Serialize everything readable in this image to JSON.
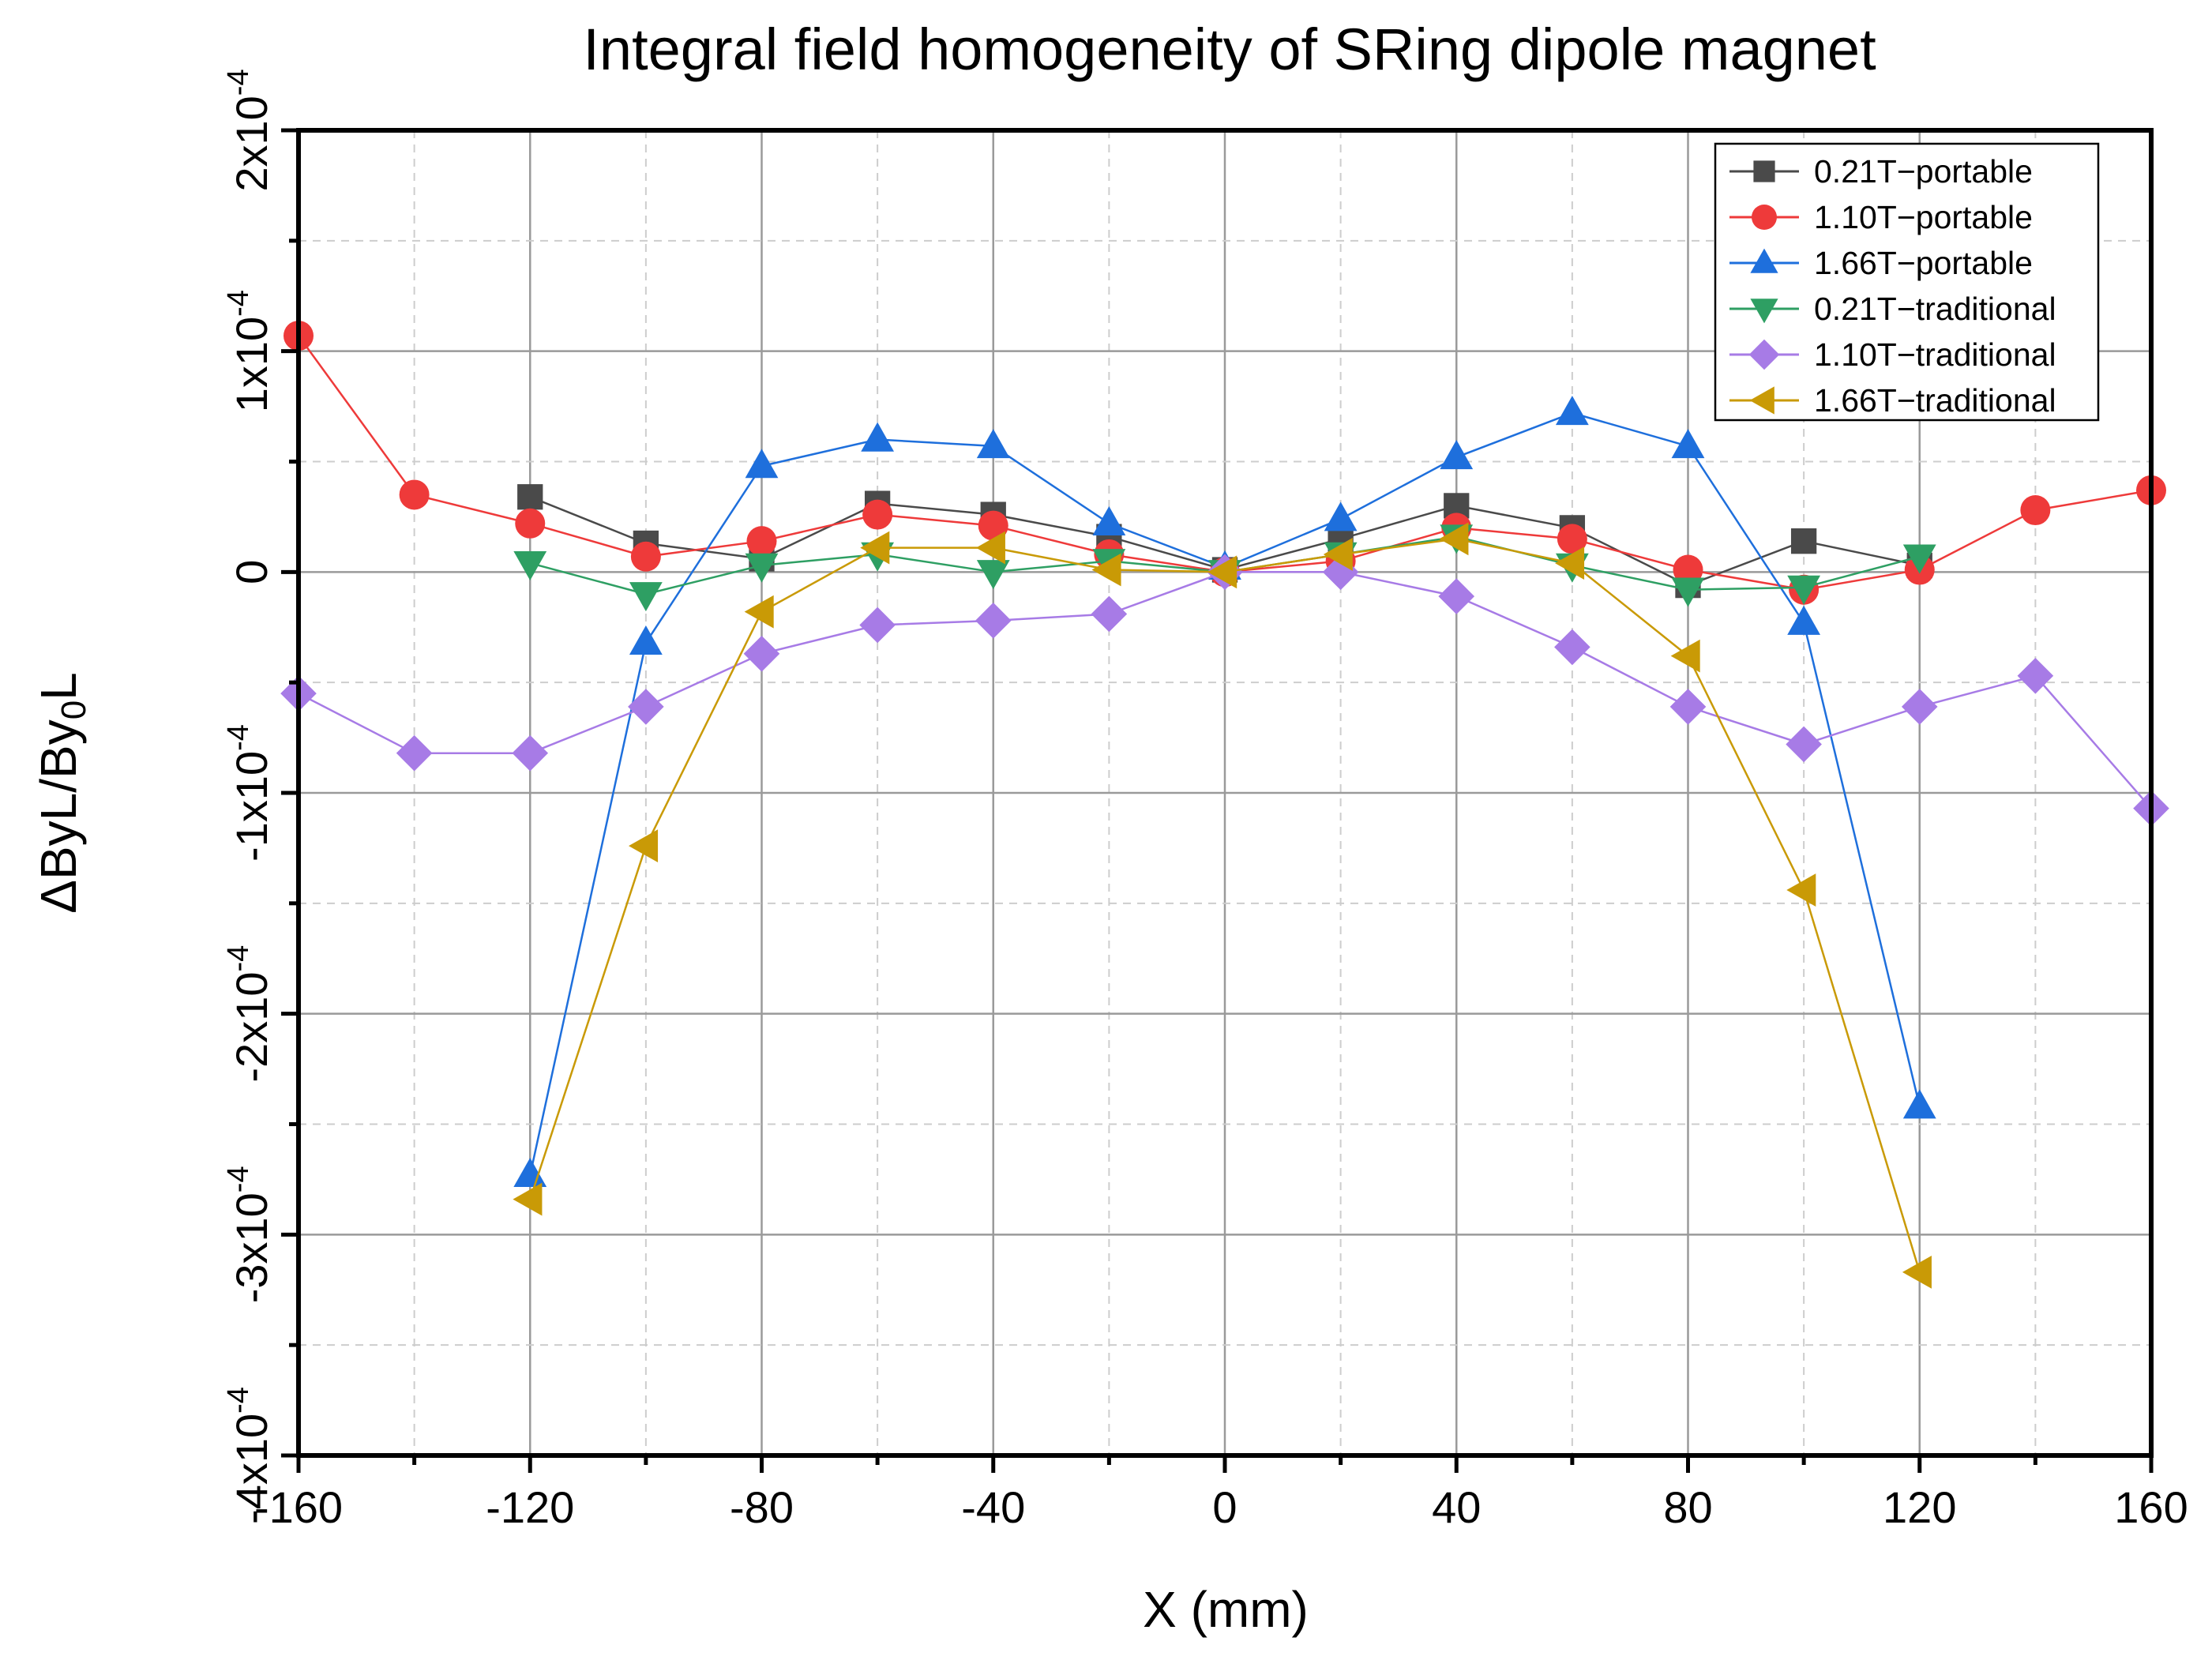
{
  "chart_data": {
    "type": "line",
    "title": "Integral field homogeneity of SRing dipole magnet",
    "xlabel": "X (mm)",
    "ylabel": "ΔByL/By0L",
    "ylabel_parts": {
      "a": "ΔByL/By",
      "sub": "0",
      "b": "L"
    },
    "xlim": [
      -160,
      160
    ],
    "ylim": [
      -4,
      2
    ],
    "y_unit_exponent": -4,
    "grid": true,
    "legend_position": "top-right",
    "x_ticks": [
      {
        "v": -160,
        "label": "-160"
      },
      {
        "v": -120,
        "label": "-120"
      },
      {
        "v": -80,
        "label": "-80"
      },
      {
        "v": -40,
        "label": "-40"
      },
      {
        "v": 0,
        "label": "0"
      },
      {
        "v": 40,
        "label": "40"
      },
      {
        "v": 80,
        "label": "80"
      },
      {
        "v": 120,
        "label": "120"
      },
      {
        "v": 160,
        "label": "160"
      }
    ],
    "y_ticks": [
      {
        "v": 2,
        "mant": "2x10",
        "exp": "-4"
      },
      {
        "v": 1,
        "mant": "1x10",
        "exp": "-4"
      },
      {
        "v": 0,
        "mant": "0",
        "exp": ""
      },
      {
        "v": -1,
        "mant": "-1x10",
        "exp": "-4"
      },
      {
        "v": -2,
        "mant": "-2x10",
        "exp": "-4"
      },
      {
        "v": -3,
        "mant": "-3x10",
        "exp": "-4"
      },
      {
        "v": -4,
        "mant": "-4x10",
        "exp": "-4"
      }
    ],
    "series": [
      {
        "name": "0.21T−portable",
        "color": "#4a4a4a",
        "marker": "square",
        "x": [
          -120,
          -100,
          -80,
          -60,
          -40,
          -20,
          0,
          20,
          40,
          60,
          80,
          100,
          120
        ],
        "values": [
          0.34,
          0.13,
          0.06,
          0.31,
          0.26,
          0.16,
          0.01,
          0.15,
          0.3,
          0.2,
          -0.06,
          0.14,
          0.03
        ]
      },
      {
        "name": "1.10T−portable",
        "color": "#ee3a3a",
        "marker": "circle",
        "x": [
          -160,
          -140,
          -120,
          -100,
          -80,
          -60,
          -40,
          -20,
          0,
          20,
          40,
          60,
          80,
          100,
          120,
          140,
          160
        ],
        "values": [
          1.07,
          0.35,
          0.22,
          0.07,
          0.14,
          0.26,
          0.21,
          0.08,
          0.0,
          0.05,
          0.2,
          0.15,
          0.01,
          -0.08,
          0.01,
          0.28,
          0.37
        ]
      },
      {
        "name": "1.66T−portable",
        "color": "#1e6fdc",
        "marker": "triangle-up",
        "x": [
          -120,
          -100,
          -80,
          -60,
          -40,
          -20,
          0,
          20,
          40,
          60,
          80,
          100,
          120
        ],
        "values": [
          -2.73,
          -0.32,
          0.48,
          0.6,
          0.57,
          0.22,
          0.02,
          0.24,
          0.52,
          0.72,
          0.57,
          -0.23,
          -2.42
        ]
      },
      {
        "name": "0.21T−traditional",
        "color": "#2e9f63",
        "marker": "triangle-down",
        "x": [
          -120,
          -100,
          -80,
          -60,
          -40,
          -20,
          0,
          20,
          40,
          60,
          80,
          100,
          120
        ],
        "values": [
          0.04,
          -0.1,
          0.03,
          0.08,
          0.0,
          0.05,
          0.0,
          0.08,
          0.16,
          0.03,
          -0.08,
          -0.07,
          0.07
        ]
      },
      {
        "name": "1.10T−traditional",
        "color": "#a77be6",
        "marker": "diamond",
        "x": [
          -160,
          -140,
          -120,
          -100,
          -80,
          -60,
          -40,
          -20,
          0,
          20,
          40,
          60,
          80,
          100,
          120,
          140,
          160
        ],
        "values": [
          -0.55,
          -0.82,
          -0.82,
          -0.61,
          -0.37,
          -0.24,
          -0.22,
          -0.19,
          0.0,
          0.0,
          -0.11,
          -0.34,
          -0.61,
          -0.78,
          -0.61,
          -0.47,
          -1.07
        ]
      },
      {
        "name": "1.66T−traditional",
        "color": "#c99a06",
        "marker": "triangle-left",
        "x": [
          -120,
          -100,
          -80,
          -60,
          -40,
          -20,
          0,
          20,
          40,
          60,
          80,
          100,
          120
        ],
        "values": [
          -2.84,
          -1.24,
          -0.18,
          0.11,
          0.11,
          0.01,
          0.0,
          0.08,
          0.15,
          0.04,
          -0.38,
          -1.44,
          -3.17
        ]
      }
    ]
  }
}
